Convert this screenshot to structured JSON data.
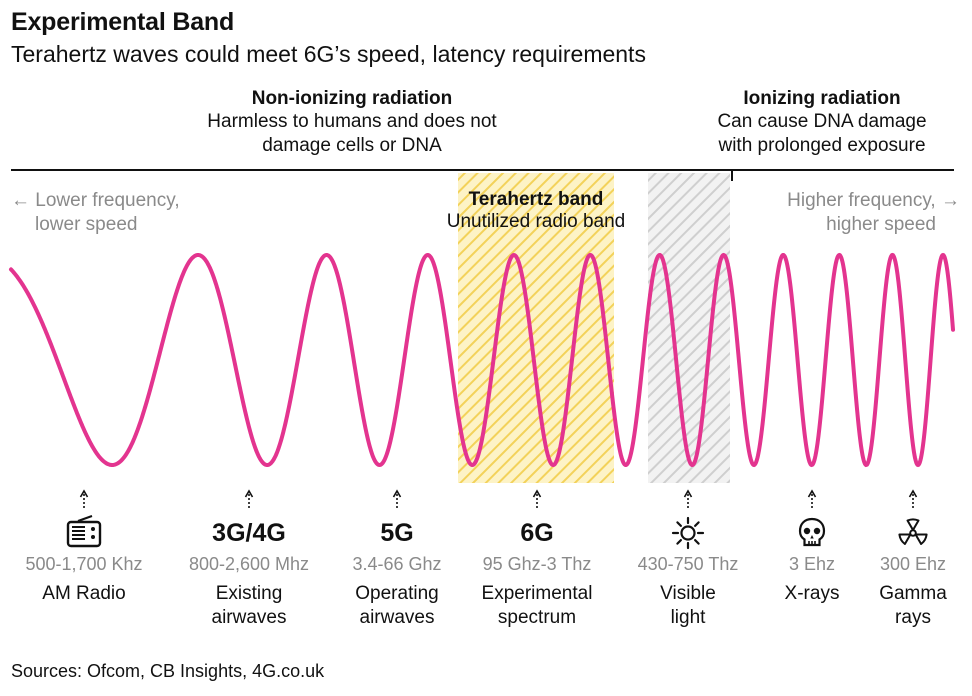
{
  "title": "Experimental Band",
  "subtitle": "Terahertz waves could meet 6G’s speed, latency requirements",
  "zones": {
    "non_ionizing": {
      "head": "Non-ionizing radiation",
      "desc_line1": "Harmless to humans and does not",
      "desc_line2": "damage cells or DNA"
    },
    "ionizing": {
      "head": "Ionizing radiation",
      "desc_line1": "Can cause DNA damage",
      "desc_line2": "with prolonged exposure"
    }
  },
  "direction": {
    "left_line1": "Lower frequency,",
    "left_line2": "lower speed",
    "right_line1": "Higher frequency,",
    "right_line2": "higher speed",
    "left_arrow": "←",
    "right_arrow": "→"
  },
  "terahertz_band": {
    "head": "Terahertz band",
    "desc": "Unutilized radio band"
  },
  "colors": {
    "wave": "#e3348f",
    "terahertz_hatch": "#f3d25a",
    "visible_hatch": "#cfcfcf",
    "muted_text": "#8a8a8a"
  },
  "markers": [
    {
      "id": "am-radio",
      "icon": "radio-icon",
      "big": "",
      "freq": "500-1,700 Khz",
      "name_line1": "AM Radio",
      "name_line2": ""
    },
    {
      "id": "3g4g",
      "icon": "",
      "big": "3G/4G",
      "freq": "800-2,600 Mhz",
      "name_line1": "Existing",
      "name_line2": "airwaves"
    },
    {
      "id": "5g",
      "icon": "",
      "big": "5G",
      "freq": "3.4-66 Ghz",
      "name_line1": "Operating",
      "name_line2": "airwaves"
    },
    {
      "id": "6g",
      "icon": "",
      "big": "6G",
      "freq": "95 Ghz-3 Thz",
      "name_line1": "Experimental",
      "name_line2": "spectrum"
    },
    {
      "id": "visible",
      "icon": "sun-icon",
      "big": "",
      "freq": "430-750 Thz",
      "name_line1": "Visible",
      "name_line2": "light"
    },
    {
      "id": "xrays",
      "icon": "skull-icon",
      "big": "",
      "freq": "3 Ehz",
      "name_line1": "X-rays",
      "name_line2": ""
    },
    {
      "id": "gamma",
      "icon": "radiation-icon",
      "big": "",
      "freq": "300 Ehz",
      "name_line1": "Gamma",
      "name_line2": "rays"
    }
  ],
  "source": "Sources: Ofcom, CB Insights, 4G.co.uk"
}
